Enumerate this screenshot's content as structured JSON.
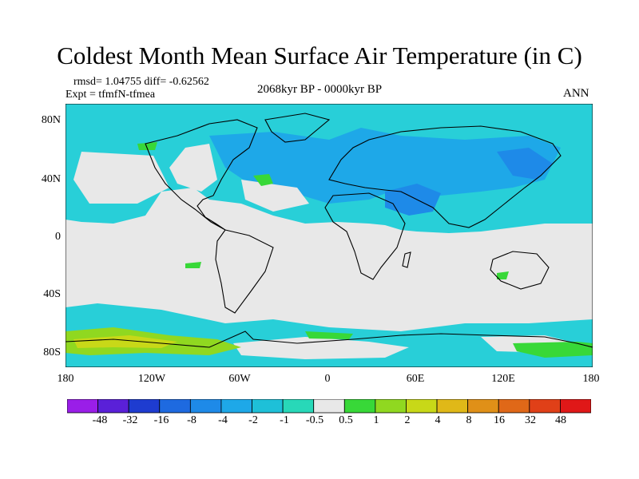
{
  "title": "Coldest Month Mean Surface Air Temperature (in C)",
  "stats": "rmsd= 1.04755 diff= -0.62562",
  "experiment": "Expt = tfmfN-tfmea",
  "period": "2068kyr BP - 0000kyr BP",
  "season": "ANN",
  "lat_labels": [
    "80N",
    "40N",
    "0",
    "40S",
    "80S"
  ],
  "lon_labels": [
    "180",
    "120W",
    "60W",
    "0",
    "60E",
    "120E",
    "180"
  ],
  "colorbar": {
    "labels": [
      "-48",
      "-32",
      "-16",
      "-8",
      "-4",
      "-2",
      "-1",
      "-0.5",
      "0.5",
      "1",
      "2",
      "4",
      "8",
      "16",
      "32",
      "48"
    ],
    "colors": [
      "#9a1ee8",
      "#5a20d8",
      "#1e3cd0",
      "#1e6ae0",
      "#1e8ae8",
      "#1ea8e8",
      "#1ec0d8",
      "#28d8b8",
      "#e8e8e8",
      "#38d838",
      "#90d820",
      "#c8d818",
      "#e0b818",
      "#e09018",
      "#e06818",
      "#e04018",
      "#e01818"
    ]
  },
  "colors": {
    "background": "#e8e8e8",
    "coastline": "#000000"
  }
}
